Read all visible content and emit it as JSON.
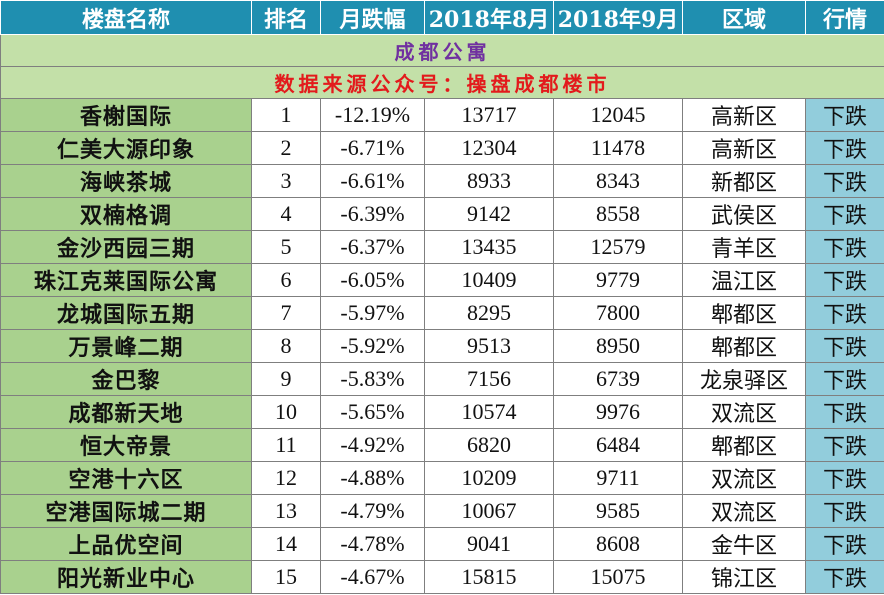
{
  "headers": {
    "name": "楼盘名称",
    "rank": "排名",
    "change": "月跌幅",
    "aug": "2018年8月",
    "sep": "2018年9月",
    "district": "区域",
    "trend": "行情"
  },
  "title": "成都公寓",
  "source": "数据来源公众号：操盘成都楼市",
  "colors": {
    "header_bg": "#1f8fb0",
    "name_bg": "#a9d18e",
    "band_bg": "#c3e0a8",
    "trend_bg": "#92cddc",
    "title_color": "#7030a0",
    "source_color": "#e31a1c"
  },
  "rows": [
    {
      "name": "香榭国际",
      "rank": "1",
      "change": "-12.19%",
      "aug": "13717",
      "sep": "12045",
      "district": "高新区",
      "trend": "下跌"
    },
    {
      "name": "仁美大源印象",
      "rank": "2",
      "change": "-6.71%",
      "aug": "12304",
      "sep": "11478",
      "district": "高新区",
      "trend": "下跌"
    },
    {
      "name": "海峡茶城",
      "rank": "3",
      "change": "-6.61%",
      "aug": "8933",
      "sep": "8343",
      "district": "新都区",
      "trend": "下跌"
    },
    {
      "name": "双楠格调",
      "rank": "4",
      "change": "-6.39%",
      "aug": "9142",
      "sep": "8558",
      "district": "武侯区",
      "trend": "下跌"
    },
    {
      "name": "金沙西园三期",
      "rank": "5",
      "change": "-6.37%",
      "aug": "13435",
      "sep": "12579",
      "district": "青羊区",
      "trend": "下跌"
    },
    {
      "name": "珠江克莱国际公寓",
      "rank": "6",
      "change": "-6.05%",
      "aug": "10409",
      "sep": "9779",
      "district": "温江区",
      "trend": "下跌"
    },
    {
      "name": "龙城国际五期",
      "rank": "7",
      "change": "-5.97%",
      "aug": "8295",
      "sep": "7800",
      "district": "郫都区",
      "trend": "下跌"
    },
    {
      "name": "万景峰二期",
      "rank": "8",
      "change": "-5.92%",
      "aug": "9513",
      "sep": "8950",
      "district": "郫都区",
      "trend": "下跌"
    },
    {
      "name": "金巴黎",
      "rank": "9",
      "change": "-5.83%",
      "aug": "7156",
      "sep": "6739",
      "district": "龙泉驿区",
      "trend": "下跌"
    },
    {
      "name": "成都新天地",
      "rank": "10",
      "change": "-5.65%",
      "aug": "10574",
      "sep": "9976",
      "district": "双流区",
      "trend": "下跌"
    },
    {
      "name": "恒大帝景",
      "rank": "11",
      "change": "-4.92%",
      "aug": "6820",
      "sep": "6484",
      "district": "郫都区",
      "trend": "下跌"
    },
    {
      "name": "空港十六区",
      "rank": "12",
      "change": "-4.88%",
      "aug": "10209",
      "sep": "9711",
      "district": "双流区",
      "trend": "下跌"
    },
    {
      "name": "空港国际城二期",
      "rank": "13",
      "change": "-4.79%",
      "aug": "10067",
      "sep": "9585",
      "district": "双流区",
      "trend": "下跌"
    },
    {
      "name": "上品优空间",
      "rank": "14",
      "change": "-4.78%",
      "aug": "9041",
      "sep": "8608",
      "district": "金牛区",
      "trend": "下跌"
    },
    {
      "name": "阳光新业中心",
      "rank": "15",
      "change": "-4.67%",
      "aug": "15815",
      "sep": "15075",
      "district": "锦江区",
      "trend": "下跌"
    }
  ]
}
